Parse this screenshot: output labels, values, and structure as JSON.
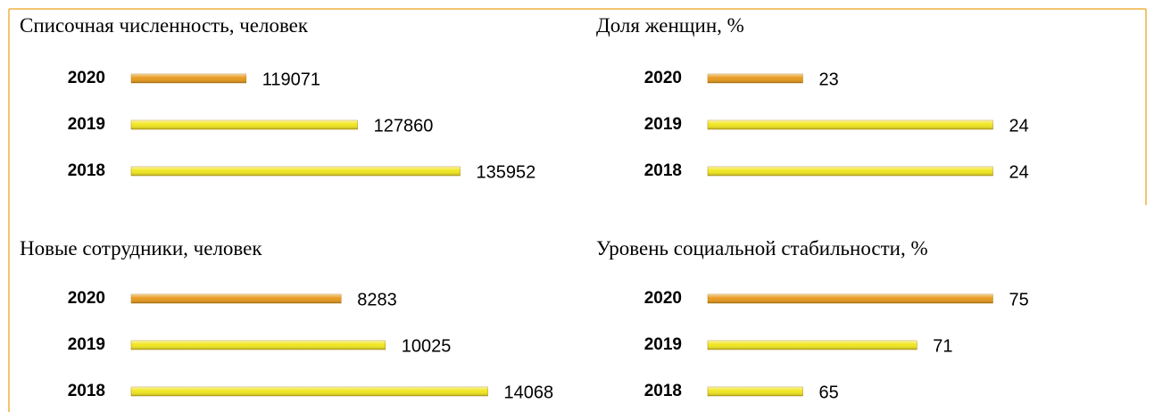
{
  "chart_data": [
    {
      "type": "bar",
      "orientation": "horizontal",
      "title": "Списочная численность, человек",
      "categories": [
        "2020",
        "2019",
        "2018"
      ],
      "values": [
        119071,
        127860,
        135952
      ],
      "colors": [
        "#e8991c",
        "#f0e61e",
        "#f0e61e"
      ],
      "xlim": [
        110000,
        140000
      ]
    },
    {
      "type": "bar",
      "orientation": "horizontal",
      "title": "Доля женщин, %",
      "categories": [
        "2020",
        "2019",
        "2018"
      ],
      "values": [
        23,
        24,
        24
      ],
      "colors": [
        "#e8991c",
        "#f0e61e",
        "#f0e61e"
      ],
      "xlim": [
        22.5,
        24.5
      ]
    },
    {
      "type": "bar",
      "orientation": "horizontal",
      "title": "Новые сотрудники, человек",
      "categories": [
        "2020",
        "2019",
        "2018"
      ],
      "values": [
        8283,
        10025,
        14068
      ],
      "colors": [
        "#e8991c",
        "#f0e61e",
        "#f0e61e"
      ],
      "xlim": [
        0,
        15000
      ]
    },
    {
      "type": "bar",
      "orientation": "horizontal",
      "title": "Уровень социальной стабильности, %",
      "categories": [
        "2020",
        "2019",
        "2018"
      ],
      "values": [
        75,
        71,
        65
      ],
      "colors": [
        "#e8991c",
        "#f0e61e",
        "#f0e61e"
      ],
      "xlim": [
        60,
        80
      ]
    }
  ]
}
